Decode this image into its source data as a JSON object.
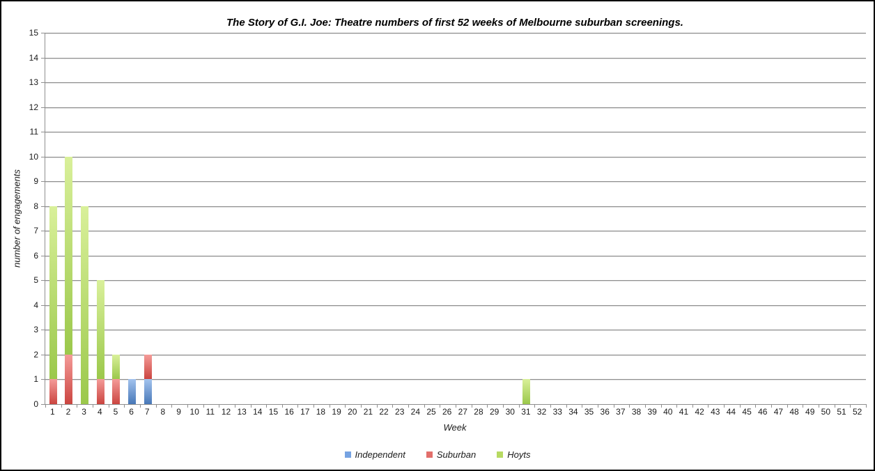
{
  "chart_data": {
    "type": "bar",
    "stacked": true,
    "title": "The Story of G.I. Joe: Theatre numbers of first 52 weeks of Melbourne suburban screenings.",
    "xlabel": "Week",
    "ylabel": "number of engagements",
    "ylim": [
      0,
      15
    ],
    "ytick_step": 1,
    "grid": true,
    "legend_position": "bottom",
    "axis_color": "#8e8e8e",
    "categories": [
      "1",
      "2",
      "3",
      "4",
      "5",
      "6",
      "7",
      "8",
      "9",
      "10",
      "11",
      "12",
      "13",
      "14",
      "15",
      "16",
      "17",
      "18",
      "19",
      "20",
      "21",
      "22",
      "23",
      "24",
      "25",
      "26",
      "27",
      "28",
      "29",
      "30",
      "31",
      "32",
      "33",
      "34",
      "35",
      "36",
      "37",
      "38",
      "39",
      "40",
      "41",
      "42",
      "43",
      "44",
      "45",
      "46",
      "47",
      "48",
      "49",
      "50",
      "51",
      "52"
    ],
    "series": [
      {
        "name": "Independent",
        "legend_color": "#76A3E2",
        "gradient_top": "#A3C3EE",
        "gradient_bottom": "#4878B8",
        "values": [
          0,
          0,
          0,
          0,
          0,
          1,
          1,
          0,
          0,
          0,
          0,
          0,
          0,
          0,
          0,
          0,
          0,
          0,
          0,
          0,
          0,
          0,
          0,
          0,
          0,
          0,
          0,
          0,
          0,
          0,
          0,
          0,
          0,
          0,
          0,
          0,
          0,
          0,
          0,
          0,
          0,
          0,
          0,
          0,
          0,
          0,
          0,
          0,
          0,
          0,
          0,
          0
        ]
      },
      {
        "name": "Suburban",
        "legend_color": "#E26F6B",
        "gradient_top": "#F49B98",
        "gradient_bottom": "#CB4540",
        "values": [
          1,
          2,
          0,
          1,
          1,
          0,
          1,
          0,
          0,
          0,
          0,
          0,
          0,
          0,
          0,
          0,
          0,
          0,
          0,
          0,
          0,
          0,
          0,
          0,
          0,
          0,
          0,
          0,
          0,
          0,
          0,
          0,
          0,
          0,
          0,
          0,
          0,
          0,
          0,
          0,
          0,
          0,
          0,
          0,
          0,
          0,
          0,
          0,
          0,
          0,
          0,
          0
        ]
      },
      {
        "name": "Hoyts",
        "legend_color": "#B7DA62",
        "gradient_top": "#D9F09A",
        "gradient_bottom": "#9BC84B",
        "values": [
          7,
          8,
          8,
          4,
          1,
          0,
          0,
          0,
          0,
          0,
          0,
          0,
          0,
          0,
          0,
          0,
          0,
          0,
          0,
          0,
          0,
          0,
          0,
          0,
          0,
          0,
          0,
          0,
          0,
          0,
          1,
          0,
          0,
          0,
          0,
          0,
          0,
          0,
          0,
          0,
          0,
          0,
          0,
          0,
          0,
          0,
          0,
          0,
          0,
          0,
          0,
          0
        ]
      }
    ]
  }
}
